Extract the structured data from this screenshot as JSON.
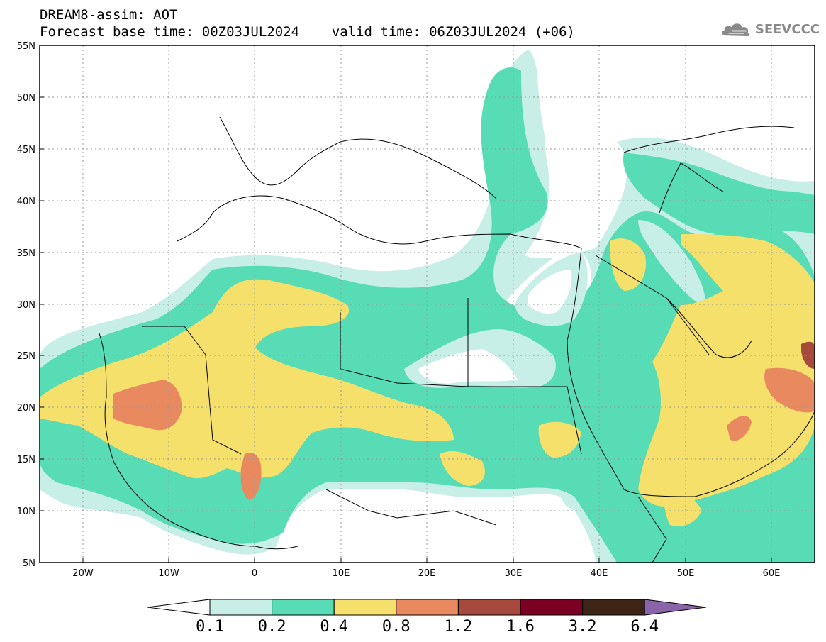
{
  "header": {
    "line1": "DREAM8-assim: AOT",
    "line2": "Forecast base time: 00Z03JUL2024    valid time: 06Z03JUL2024 (+06)"
  },
  "logo": {
    "text": "SEEVCCC",
    "icon": "cloud-icon"
  },
  "map": {
    "lon_range": [
      -25,
      65
    ],
    "lat_range": [
      5,
      55
    ],
    "lat_ticks": [
      "55N",
      "50N",
      "45N",
      "40N",
      "35N",
      "30N",
      "25N",
      "20N",
      "15N",
      "10N",
      "5N"
    ],
    "lon_ticks": [
      "20W",
      "10W",
      "0",
      "10E",
      "20E",
      "30E",
      "40E",
      "50E",
      "60E"
    ]
  },
  "colorbar": {
    "labels": [
      "0.1",
      "0.2",
      "0.4",
      "0.8",
      "1.2",
      "1.6",
      "3.2",
      "6.4"
    ],
    "colors": [
      "#ffffff",
      "#c7eee7",
      "#57dcb6",
      "#f5e06c",
      "#e8895f",
      "#a54a3c",
      "#7a0024",
      "#3d2414",
      "#8a64a8"
    ]
  }
}
